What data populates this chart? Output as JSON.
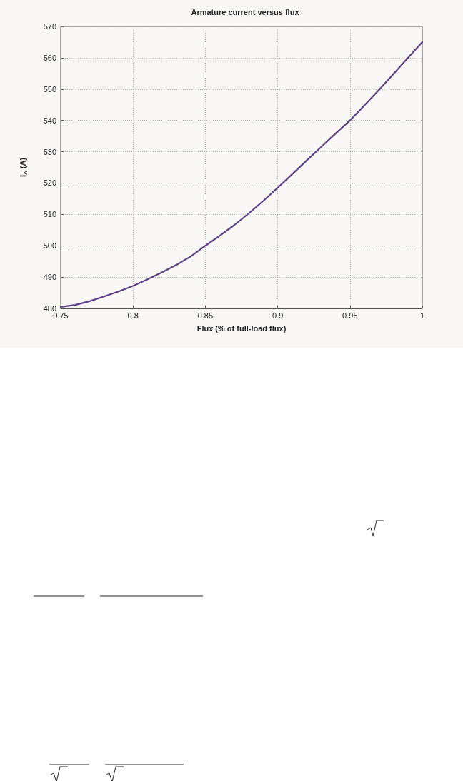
{
  "chart_data": {
    "type": "line",
    "title": "Armature current versus flux",
    "xlabel": "Flux (% of full-load flux)",
    "ylabel": "I$_{A}$ (A)",
    "x": [
      0.75,
      0.76,
      0.77,
      0.78,
      0.79,
      0.8,
      0.81,
      0.82,
      0.83,
      0.84,
      0.85,
      0.86,
      0.87,
      0.88,
      0.89,
      0.9,
      0.91,
      0.92,
      0.93,
      0.94,
      0.95,
      0.96,
      0.97,
      0.98,
      0.99,
      1.0
    ],
    "series": [
      {
        "color": "#5b3f87",
        "values": [
          480.5,
          481.1,
          482.3,
          483.8,
          485.4,
          487.2,
          489.3,
          491.5,
          493.9,
          496.6,
          500,
          503.2,
          506.6,
          510.3,
          514.3,
          518.5,
          522.8,
          527.2,
          531.5,
          535.8,
          540,
          544.8,
          549.7,
          554.8,
          559.9,
          565
        ]
      }
    ],
    "xlim": [
      0.75,
      1
    ],
    "xticks": [
      0.75,
      0.8,
      0.85,
      0.9,
      0.95,
      1
    ],
    "ylim": [
      480,
      570
    ],
    "yticks": [
      480,
      490,
      500,
      510,
      520,
      530,
      540,
      550,
      560,
      570
    ],
    "grid": true,
    "marker": "none",
    "line_style": "solid"
  }
}
